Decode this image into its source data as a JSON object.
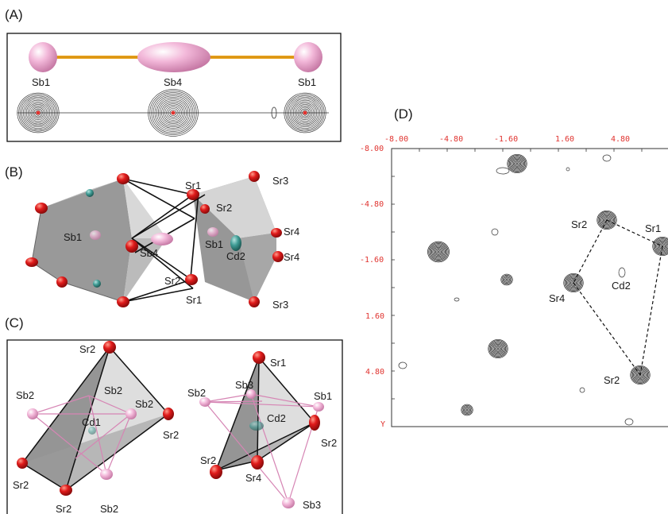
{
  "panels": {
    "a": {
      "label": "(A)",
      "atoms": [
        "Sb1",
        "Sb4",
        "Sb1"
      ]
    },
    "b": {
      "label": "(B)",
      "atoms": [
        "Sr1",
        "Sr3",
        "Sr2",
        "Sb1",
        "Sb4",
        "Sb1",
        "Cd2",
        "Sr4",
        "Sr4",
        "Sr2",
        "Sr1",
        "Sr3"
      ]
    },
    "c": {
      "label": "(C)",
      "left_atoms": [
        "Sr2",
        "Sb2",
        "Sb2",
        "Sb2",
        "Cd1",
        "Sr2",
        "Sr2",
        "Sr2",
        "Sb2"
      ],
      "right_atoms": [
        "Sr1",
        "Sb2",
        "Sb3",
        "Sb1",
        "Cd2",
        "Sr2",
        "Sr2",
        "Sr4",
        "Sb3"
      ]
    },
    "d": {
      "label": "(D)",
      "x_ticks": [
        "-8.00",
        "-4.80",
        "-1.60",
        "1.60",
        "4.80"
      ],
      "y_ticks": [
        "-8.00",
        "-4.80",
        "-1.60",
        "1.60",
        "4.80"
      ],
      "y_axis_label": "Y",
      "atoms": [
        "Sr2",
        "Sr1",
        "Cd2",
        "Sr4",
        "Sr2"
      ]
    }
  },
  "colors": {
    "sb_pink": "#f2b3d6",
    "sr_red": "#e01b1b",
    "cd_teal": "#3f9c95",
    "bond_orange": "#e9a21c",
    "axis_red": "#e0332f",
    "polyhedron_grey": "#8e8e8e"
  }
}
